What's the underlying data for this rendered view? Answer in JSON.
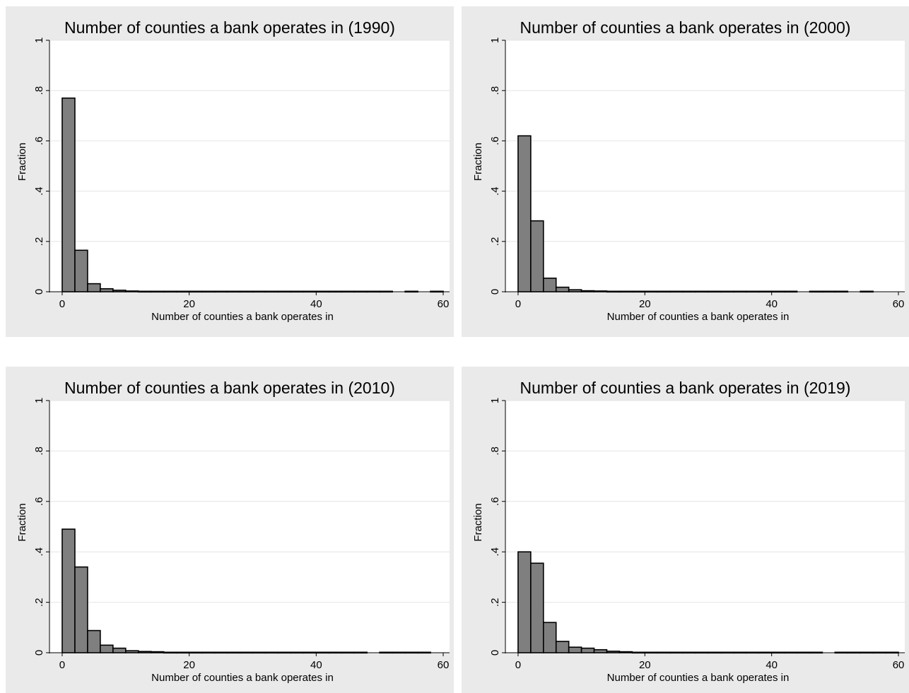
{
  "colors": {
    "panel_background": "#eaeaea",
    "plot_background": "#ffffff",
    "grid": "#e4e4e4",
    "bar_fill": "#7f7f7f",
    "bar_stroke": "#000000",
    "text": "#000000"
  },
  "chart_data": [
    {
      "type": "bar",
      "title": "Number of counties a bank operates in (1990)",
      "xlabel": "Number of counties a bank operates in",
      "ylabel": "Fraction",
      "xlim": [
        -2,
        61
      ],
      "ylim": [
        0,
        1
      ],
      "xticks": [
        "0",
        "20",
        "40",
        "60"
      ],
      "yticks": [
        "0",
        ".2",
        ".4",
        ".6",
        ".8",
        "1"
      ],
      "grid": true,
      "bin_width": 2,
      "bin_start": 0,
      "values": [
        0.77,
        0.165,
        0.032,
        0.012,
        0.006,
        0.003,
        0.002,
        0.002,
        0.002,
        0.002,
        0.002,
        0.002,
        0.002,
        0.002,
        0.002,
        0.002,
        0.002,
        0.002,
        0.002,
        0.002,
        0.002,
        0.002,
        0.002,
        0.002,
        0.002,
        0.002,
        0,
        0.002,
        0,
        0.002
      ]
    },
    {
      "type": "bar",
      "title": "Number of counties a bank operates in (2000)",
      "xlabel": "Number of counties a bank operates in",
      "ylabel": "Fraction",
      "xlim": [
        -2,
        61
      ],
      "ylim": [
        0,
        1
      ],
      "xticks": [
        "0",
        "20",
        "40",
        "60"
      ],
      "yticks": [
        "0",
        ".2",
        ".4",
        ".6",
        ".8",
        "1"
      ],
      "grid": true,
      "bin_width": 2,
      "bin_start": 0,
      "values": [
        0.62,
        0.282,
        0.054,
        0.018,
        0.008,
        0.004,
        0.003,
        0.002,
        0.002,
        0.002,
        0.002,
        0.002,
        0.002,
        0.002,
        0.002,
        0.002,
        0.002,
        0.002,
        0.002,
        0.002,
        0.002,
        0.002,
        0,
        0.002,
        0.002,
        0.002,
        0,
        0.002,
        0
      ]
    },
    {
      "type": "bar",
      "title": "Number of counties a bank operates in (2010)",
      "xlabel": "Number of counties a bank operates in",
      "ylabel": "Fraction",
      "xlim": [
        -2,
        61
      ],
      "ylim": [
        0,
        1
      ],
      "xticks": [
        "0",
        "20",
        "40",
        "60"
      ],
      "yticks": [
        "0",
        ".2",
        ".4",
        ".6",
        ".8",
        "1"
      ],
      "grid": true,
      "bin_width": 2,
      "bin_start": 0,
      "values": [
        0.49,
        0.34,
        0.088,
        0.03,
        0.018,
        0.008,
        0.005,
        0.004,
        0.002,
        0.002,
        0.002,
        0.002,
        0.002,
        0.002,
        0.002,
        0.002,
        0.002,
        0.002,
        0.002,
        0.002,
        0.002,
        0.002,
        0.002,
        0.002,
        0,
        0.002,
        0.002,
        0.002,
        0.002
      ]
    },
    {
      "type": "bar",
      "title": "Number of counties a bank operates in (2019)",
      "xlabel": "Number of counties a bank operates in",
      "ylabel": "Fraction",
      "xlim": [
        -2,
        61
      ],
      "ylim": [
        0,
        1
      ],
      "xticks": [
        "0",
        "20",
        "40",
        "60"
      ],
      "yticks": [
        "0",
        ".2",
        ".4",
        ".6",
        ".8",
        "1"
      ],
      "grid": true,
      "bin_width": 2,
      "bin_start": 0,
      "values": [
        0.4,
        0.355,
        0.12,
        0.045,
        0.022,
        0.018,
        0.012,
        0.006,
        0.004,
        0.002,
        0.002,
        0.002,
        0.002,
        0.002,
        0.002,
        0.002,
        0.002,
        0.002,
        0.002,
        0.002,
        0.002,
        0.002,
        0.002,
        0.002,
        0,
        0.002,
        0.002,
        0.002,
        0.002,
        0.002
      ]
    }
  ]
}
